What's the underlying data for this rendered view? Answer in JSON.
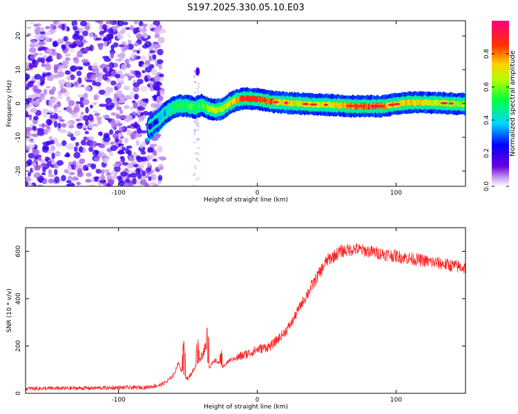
{
  "title": "S197.2025.330.05.10.E03",
  "colors": {
    "snr_line": "#ff2020",
    "axis": "#000000",
    "blob_purple": "#7a2be0",
    "background": "#ffffff"
  },
  "chart_data": [
    {
      "type": "heatmap",
      "name": "spectrogram",
      "xlabel": "Height of straight line (km)",
      "ylabel": "Frequency (Hz)",
      "xlim": [
        -167,
        150
      ],
      "ylim": [
        -24.5,
        24.5
      ],
      "xticks": [
        -100,
        0,
        100
      ],
      "xtick_labels": [
        "-100",
        "0",
        "100"
      ],
      "yticks": [
        -20,
        -10,
        0,
        10,
        20
      ],
      "ytick_labels": [
        "-20",
        "-10",
        "0",
        "10",
        "20"
      ],
      "ridge": {
        "x": [
          -78,
          -72,
          -66,
          -60,
          -55,
          -50,
          -45,
          -40,
          -35,
          -30,
          -25,
          -20,
          -15,
          -10,
          -5,
          0,
          10,
          20,
          30,
          40,
          50,
          60,
          70,
          80,
          90,
          100,
          110,
          120,
          130,
          140,
          150
        ],
        "y": [
          -7,
          -5,
          -2.5,
          -1,
          -0.6,
          -0.8,
          -1.2,
          -0.5,
          -1.5,
          -2,
          -1.5,
          0,
          1,
          1.5,
          1.4,
          1.3,
          0.5,
          0.2,
          0,
          -0.3,
          -0.4,
          -0.6,
          -0.8,
          -0.8,
          -0.8,
          -0.2,
          0.3,
          0.3,
          0.2,
          0,
          -0.2
        ],
        "amplitude": [
          0.2,
          0.3,
          0.4,
          0.5,
          0.5,
          0.5,
          0.55,
          0.5,
          0.6,
          0.7,
          0.6,
          0.7,
          0.75,
          0.85,
          0.9,
          0.85,
          0.8,
          0.7,
          0.7,
          0.7,
          0.7,
          0.75,
          0.8,
          0.85,
          0.8,
          0.7,
          0.7,
          0.7,
          0.65,
          0.65,
          0.6
        ]
      },
      "noise_region": [
        -167,
        -68
      ]
    },
    {
      "type": "colorbar",
      "name": "colorbar",
      "label": "Normalized spectral amplitude",
      "range": [
        0,
        1
      ],
      "ticks": [
        0.0,
        0.2,
        0.4,
        0.6,
        0.8
      ],
      "tick_labels": [
        "0.0",
        "0.2",
        "0.4",
        "0.6",
        "0.8"
      ]
    },
    {
      "type": "line",
      "name": "snr",
      "xlabel": "Height of straight line (km)",
      "ylabel": "SNR (10 * v/v)",
      "xlim": [
        -167,
        150
      ],
      "ylim": [
        0,
        700
      ],
      "xticks": [
        -100,
        0,
        100
      ],
      "xtick_labels": [
        "-100",
        "0",
        "100"
      ],
      "yticks": [
        0,
        200,
        400,
        600
      ],
      "ytick_labels": [
        "0",
        "200",
        "400",
        "600"
      ],
      "envelope": {
        "x": [
          -167,
          -120,
          -80,
          -70,
          -65,
          -60,
          -57,
          -55,
          -50,
          -45,
          -40,
          -37,
          -35,
          -30,
          -25,
          -20,
          -10,
          0,
          10,
          20,
          25,
          30,
          40,
          50,
          55,
          60,
          70,
          80,
          90,
          100,
          110,
          120,
          130,
          140,
          150
        ],
        "y": [
          20,
          22,
          25,
          35,
          50,
          80,
          130,
          100,
          60,
          110,
          160,
          200,
          110,
          140,
          110,
          140,
          160,
          185,
          200,
          260,
          300,
          360,
          460,
          560,
          580,
          600,
          610,
          600,
          590,
          580,
          570,
          560,
          550,
          540,
          530
        ]
      },
      "spikes": [
        {
          "x": -53,
          "y": 230
        },
        {
          "x": -43,
          "y": 245
        },
        {
          "x": -36,
          "y": 290
        },
        {
          "x": -26,
          "y": 200
        }
      ],
      "noise_amplitude": 35
    }
  ]
}
